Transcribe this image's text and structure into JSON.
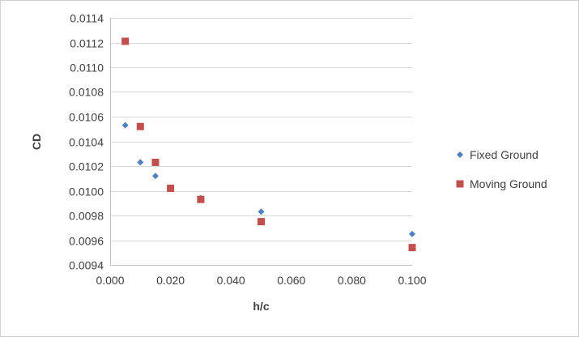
{
  "chart_data": {
    "type": "scatter",
    "title": "",
    "xlabel": "h/c",
    "ylabel": "CD",
    "xlim": [
      0.0,
      0.1
    ],
    "ylim": [
      0.0094,
      0.0114
    ],
    "x_ticks": [
      0.0,
      0.02,
      0.04,
      0.06,
      0.08,
      0.1
    ],
    "x_tick_labels": [
      "0.000",
      "0.020",
      "0.040",
      "0.060",
      "0.080",
      "0.100"
    ],
    "y_ticks": [
      0.0094,
      0.0096,
      0.0098,
      0.01,
      0.0102,
      0.0104,
      0.0106,
      0.0108,
      0.011,
      0.0112,
      0.0114
    ],
    "y_tick_labels": [
      "0.0094",
      "0.0096",
      "0.0098",
      "0.0100",
      "0.0102",
      "0.0104",
      "0.0106",
      "0.0108",
      "0.0110",
      "0.0112",
      "0.0114"
    ],
    "grid": true,
    "legend_position": "right",
    "series": [
      {
        "name": "Fixed Ground",
        "marker": "diamond",
        "color": "#4f81bd",
        "points": [
          {
            "x": 0.005,
            "y": 0.01053
          },
          {
            "x": 0.01,
            "y": 0.01023
          },
          {
            "x": 0.015,
            "y": 0.01012
          },
          {
            "x": 0.03,
            "y": 0.00994
          },
          {
            "x": 0.05,
            "y": 0.00983
          },
          {
            "x": 0.1,
            "y": 0.00965
          }
        ]
      },
      {
        "name": "Moving Ground",
        "marker": "square",
        "color": "#c0504d",
        "points": [
          {
            "x": 0.005,
            "y": 0.01121
          },
          {
            "x": 0.01,
            "y": 0.01052
          },
          {
            "x": 0.015,
            "y": 0.01023
          },
          {
            "x": 0.02,
            "y": 0.01002
          },
          {
            "x": 0.03,
            "y": 0.00993
          },
          {
            "x": 0.05,
            "y": 0.00975
          },
          {
            "x": 0.1,
            "y": 0.00954
          }
        ]
      }
    ]
  }
}
